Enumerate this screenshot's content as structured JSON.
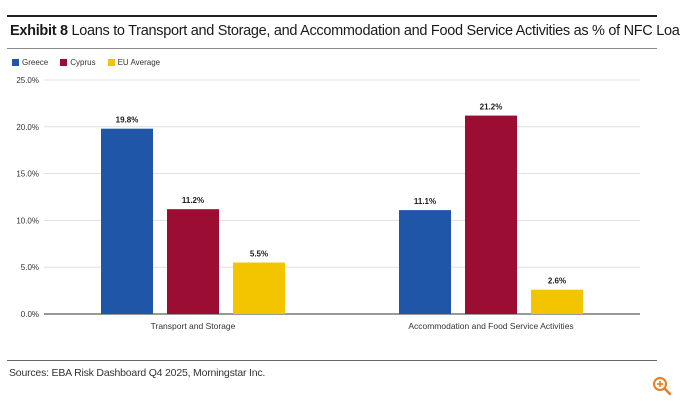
{
  "header": {
    "exhibit": "Exhibit 8",
    "title": "Loans to Transport and Storage, and Accommodation and Food Service Activities as % of NFC Loans"
  },
  "footer": {
    "source": "Sources: EBA Risk Dashboard Q4 2025, Morningstar Inc."
  },
  "icons": {
    "zoom": "zoom-in-icon"
  },
  "chart_data": {
    "type": "bar",
    "categories": [
      "Transport and Storage",
      "Accommodation and Food Service Activities"
    ],
    "series": [
      {
        "name": "Greece",
        "color": "#1f56a8",
        "values": [
          19.8,
          11.1
        ],
        "labels": [
          "19.8%",
          "11.1%"
        ]
      },
      {
        "name": "Cyprus",
        "color": "#9b0d32",
        "values": [
          11.2,
          21.2
        ],
        "labels": [
          "11.2%",
          "21.2%"
        ]
      },
      {
        "name": "EU Average",
        "color": "#f2c500",
        "values": [
          5.5,
          2.6
        ],
        "labels": [
          "5.5%",
          "2.6%"
        ]
      }
    ],
    "ylim": [
      0,
      25
    ],
    "yticks": [
      0,
      5,
      10,
      15,
      20,
      25
    ],
    "ytick_labels": [
      "0.0%",
      "5.0%",
      "10.0%",
      "15.0%",
      "20.0%",
      "25.0%"
    ],
    "grid": true,
    "legend_position": "top-left"
  }
}
